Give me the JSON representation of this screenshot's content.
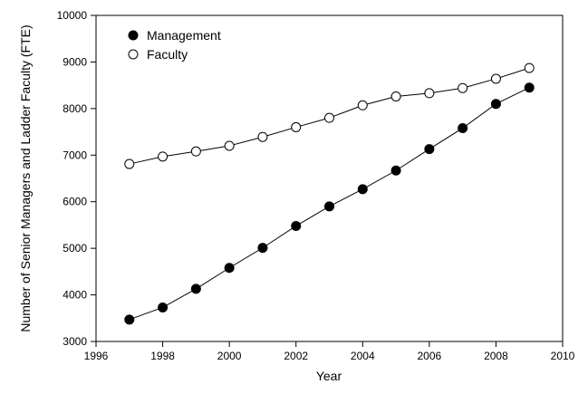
{
  "chart_data": {
    "type": "line",
    "title": "",
    "xlabel": "Year",
    "ylabel": "Number of Senior Managers and Ladder Faculty (FTE)",
    "xlim": [
      1996,
      2010
    ],
    "ylim": [
      3000,
      10000
    ],
    "x_ticks": [
      1996,
      1998,
      2000,
      2002,
      2004,
      2006,
      2008,
      2010
    ],
    "y_ticks": [
      3000,
      4000,
      5000,
      6000,
      7000,
      8000,
      9000,
      10000
    ],
    "grid": false,
    "legend": "top-left",
    "x": [
      1997,
      1998,
      1999,
      2000,
      2001,
      2002,
      2003,
      2004,
      2005,
      2006,
      2007,
      2008,
      2009
    ],
    "series": [
      {
        "name": "Management",
        "marker": "filled-circle",
        "color": "#000000",
        "values": [
          3470,
          3730,
          4130,
          4580,
          5010,
          5480,
          5900,
          6270,
          6670,
          7130,
          7580,
          8100,
          8450
        ]
      },
      {
        "name": "Faculty",
        "marker": "open-circle",
        "color": "#000000",
        "values": [
          6810,
          6970,
          7080,
          7200,
          7390,
          7600,
          7800,
          8070,
          8260,
          8330,
          8440,
          8640,
          8870
        ]
      }
    ]
  }
}
